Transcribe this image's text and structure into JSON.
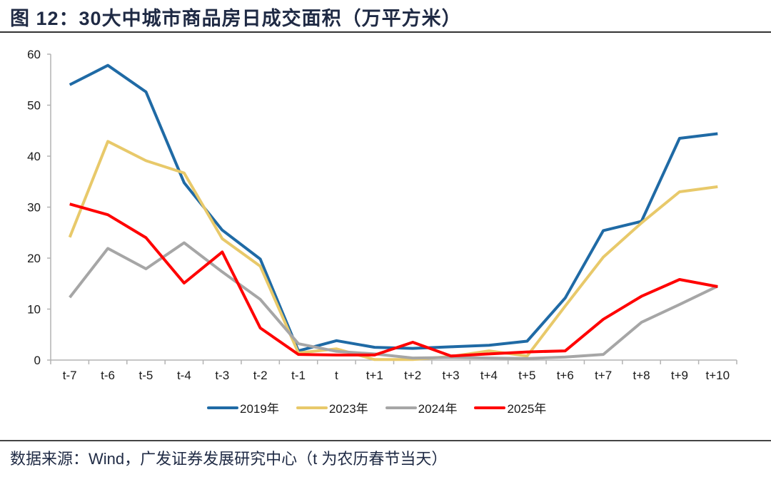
{
  "title": "图  12：30大中城市商品房日成交面积（万平方米）",
  "source": "数据来源：Wind，广发证券发展研究中心（t 为农历春节当天）",
  "chart_data": {
    "type": "line",
    "title": "30大中城市商品房日成交面积（万平方米）",
    "xlabel": "",
    "ylabel": "",
    "ylim": [
      0,
      60
    ],
    "yticks": [
      0,
      10,
      20,
      30,
      40,
      50,
      60
    ],
    "grid": false,
    "legend_position": "bottom",
    "categories": [
      "t-7",
      "t-6",
      "t-5",
      "t-4",
      "t-3",
      "t-2",
      "t-1",
      "t",
      "t+1",
      "t+2",
      "t+3",
      "t+4",
      "t+5",
      "t+6",
      "t+7",
      "t+8",
      "t+9",
      "t+10"
    ],
    "series": [
      {
        "name": "2019年",
        "color": "#1f6aa5",
        "values": [
          54.0,
          57.8,
          52.6,
          34.8,
          25.5,
          19.8,
          1.8,
          3.8,
          2.5,
          2.3,
          2.6,
          2.9,
          3.7,
          12.2,
          25.4,
          27.2,
          43.5,
          44.4
        ]
      },
      {
        "name": "2023年",
        "color": "#e8c96a",
        "values": [
          24.1,
          42.9,
          39.1,
          36.7,
          23.8,
          18.4,
          1.4,
          2.2,
          0.1,
          0.1,
          0.7,
          1.8,
          0.8,
          10.6,
          20.2,
          26.9,
          33.0,
          34.0
        ]
      },
      {
        "name": "2024年",
        "color": "#a6a6a6",
        "values": [
          12.3,
          21.9,
          17.9,
          23.0,
          17.3,
          11.9,
          3.2,
          1.7,
          1.2,
          0.4,
          0.5,
          0.4,
          0.3,
          0.6,
          1.1,
          7.4,
          10.9,
          14.5
        ]
      },
      {
        "name": "2025年",
        "color": "#ff0000",
        "values": [
          30.6,
          28.5,
          24.0,
          15.1,
          21.2,
          6.3,
          1.1,
          1.0,
          1.0,
          3.5,
          0.8,
          1.2,
          1.6,
          1.8,
          8.0,
          12.5,
          15.8,
          14.4
        ]
      }
    ]
  }
}
